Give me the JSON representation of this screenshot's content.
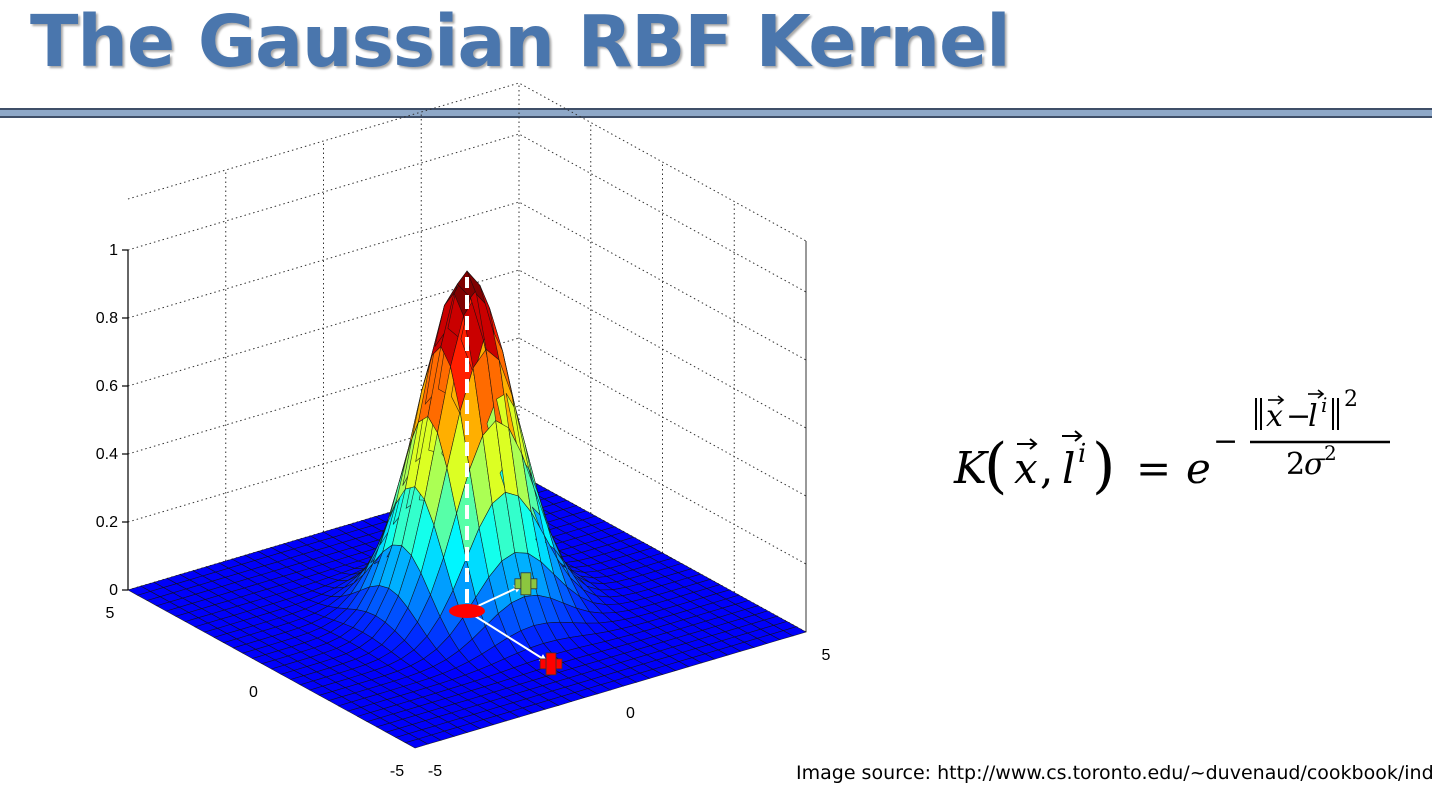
{
  "slide": {
    "title": "The Gaussian RBF Kernel",
    "source": "Image source: http://www.cs.toronto.edu/~duvenaud/cookbook/index"
  },
  "formula": {
    "lhs_symbol": "K",
    "x_var": "x",
    "landmark_var": "l",
    "landmark_superscript": "i",
    "equals": "=",
    "base": "e",
    "exponent_sign": "−",
    "numerator_power": "2",
    "denominator_coeff": "2",
    "denominator_symbol": "σ",
    "denominator_power": "2"
  },
  "plot": {
    "z_ticks": [
      "1",
      "0.8",
      "0.6",
      "0.4",
      "0.2",
      "0"
    ],
    "x_ticks": [
      "5",
      "0",
      "-5"
    ],
    "y_ticks": [
      "-5",
      "0",
      "5"
    ]
  },
  "chart_data": {
    "type": "surface",
    "surface_function": "z = exp(-(x^2 + y^2) / 2)",
    "x_range": [
      -5,
      5
    ],
    "y_range": [
      -5,
      5
    ],
    "zlim": [
      0,
      1
    ],
    "grid": true,
    "grid_steps": 30,
    "colormap": "jet",
    "peak": {
      "x": 0,
      "y": 0,
      "z": 1
    },
    "markers": [
      {
        "kind": "landmark",
        "shape": "ellipse",
        "color": "#ff0000",
        "x": 0,
        "y": 0
      },
      {
        "kind": "point",
        "shape": "plus",
        "color": "#8cc63f",
        "x": 0.4,
        "y": 1.8
      },
      {
        "kind": "point",
        "shape": "plus",
        "color": "#ff0000",
        "x": -3.2,
        "y": -0.2
      }
    ],
    "peak_line": {
      "style": "dashed",
      "color": "#ffffff"
    },
    "colors": {
      "mesh_line": "#111111",
      "arrow": "#ffffff",
      "axis": "#000000"
    }
  }
}
